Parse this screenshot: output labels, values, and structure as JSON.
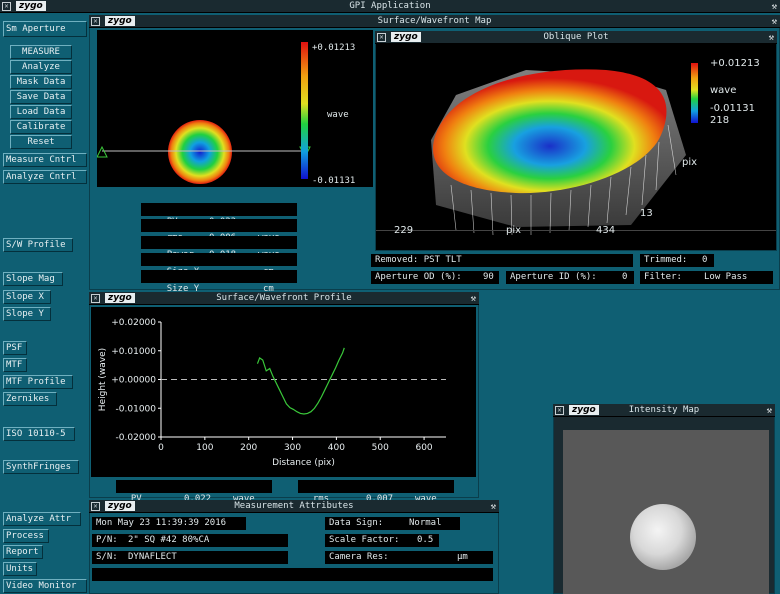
{
  "app": {
    "title": "GPI Application",
    "logo": "zygo"
  },
  "left_menu": [
    "Sm Aperture",
    "MEASURE",
    "Analyze",
    "Mask Data",
    "Save Data",
    "Load Data",
    "Calibrate",
    "Reset",
    "Measure Cntrl",
    "Analyze Cntrl",
    "S/W Profile",
    "Slope Mag",
    "Slope X",
    "Slope Y",
    "PSF",
    "MTF",
    "MTF Profile",
    "Zernikes",
    "ISO 10110-5",
    "SynthFringes",
    "Analyze Attr",
    "Process",
    "Report",
    "Units",
    "Video Monitor"
  ],
  "map": {
    "title": "Surface/Wavefront Map",
    "scale_max": "+0.01213",
    "scale_unit": "wave",
    "scale_min": "-0.01131",
    "stats": [
      {
        "label": "PV",
        "value": "0.023",
        "unit": "wave"
      },
      {
        "label": "rms",
        "value": "0.006",
        "unit": "wave"
      },
      {
        "label": "Power",
        "value": "0.018",
        "unit": "wave"
      },
      {
        "label": "Size X",
        "value": "",
        "unit": "cm"
      },
      {
        "label": "Size Y",
        "value": "",
        "unit": "cm"
      }
    ]
  },
  "oblique": {
    "title": "Oblique Plot",
    "scale_max": "+0.01213",
    "scale_unit": "wave",
    "scale_min": "-0.01131",
    "scale_extra": "218",
    "x_start": "229",
    "x_label": "pix",
    "x_end": "434",
    "y_label": "pix",
    "y_start": "13"
  },
  "info": {
    "removed": "Removed: PST TLT",
    "trimmed_label": "Trimmed:",
    "trimmed_value": "0",
    "aperture_od_label": "Aperture OD (%):",
    "aperture_od_value": "90",
    "aperture_id_label": "Aperture ID (%):",
    "aperture_id_value": "0",
    "filter_label": "Filter:",
    "filter_value": "Low Pass"
  },
  "profile": {
    "title": "Surface/Wavefront Profile",
    "pv_label": "PV",
    "pv_value": "0.022",
    "pv_unit": "wave",
    "rms_label": "rms",
    "rms_value": "0.007",
    "rms_unit": "wave"
  },
  "chart_data": {
    "type": "line",
    "title": "",
    "xlabel": "Distance (pix)",
    "ylabel": "Height (wave)",
    "xlim": [
      0,
      650
    ],
    "ylim": [
      -0.02,
      0.02
    ],
    "x_ticks": [
      "0",
      "100",
      "200",
      "300",
      "400",
      "500",
      "600"
    ],
    "y_ticks": [
      "+0.02000",
      "+0.01000",
      "+0.00000",
      "-0.01000",
      "-0.02000"
    ],
    "series": [
      {
        "color": "#3ac83a",
        "x": [
          220,
          225,
          232,
          240,
          248,
          255,
          262,
          270,
          278,
          286,
          294,
          302,
          310,
          318,
          326,
          334,
          342,
          350,
          358,
          366,
          374,
          382,
          390,
          398,
          406,
          414,
          418
        ],
        "y": [
          0.0055,
          0.0075,
          0.0068,
          0.003,
          0.0038,
          0.0012,
          -0.001,
          -0.0035,
          -0.006,
          -0.0085,
          -0.0098,
          -0.0104,
          -0.0112,
          -0.0118,
          -0.012,
          -0.0118,
          -0.0112,
          -0.01,
          -0.0082,
          -0.006,
          -0.0035,
          -0.001,
          0.0015,
          0.004,
          0.0068,
          0.0092,
          0.011
        ]
      }
    ]
  },
  "attributes": {
    "title": "Measurement Attributes",
    "date": "Mon May 23 11:39:39 2016",
    "pn_label": "P/N:",
    "pn_value": "2\" SQ #42 80%CA",
    "sn_label": "S/N:",
    "sn_value": "DYNAFLECT",
    "data_sign_label": "Data Sign:",
    "data_sign_value": "Normal",
    "scale_factor_label": "Scale Factor:",
    "scale_factor_value": "0.5",
    "camera_res_label": "Camera Res:",
    "camera_res_unit": "µm"
  },
  "intensity": {
    "title": "Intensity Map"
  },
  "colors": {
    "bg": "#0f5f73",
    "titlebar": "#1a2a30",
    "profile_line": "#3ac83a"
  }
}
